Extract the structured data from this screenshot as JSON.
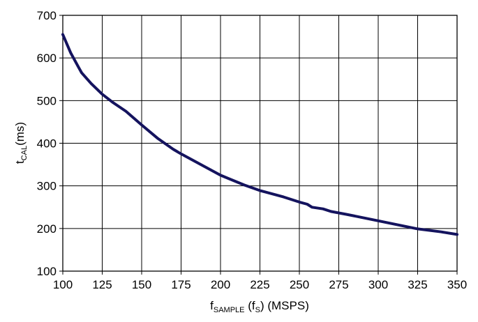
{
  "chart_data": {
    "type": "line",
    "title": "",
    "xlabel": {
      "main": "f",
      "sub1": "SAMPLE",
      "mid1": " (f",
      "sub2": "S",
      "mid2": ") (MSPS)"
    },
    "ylabel": {
      "main": "t",
      "sub": "CAL",
      "unit": "(ms)"
    },
    "xlim": [
      100,
      350
    ],
    "ylim": [
      100,
      700
    ],
    "xticks": [
      "100",
      "125",
      "150",
      "175",
      "200",
      "225",
      "250",
      "275",
      "300",
      "325",
      "350"
    ],
    "yticks": [
      "100",
      "200",
      "300",
      "400",
      "500",
      "600",
      "700"
    ],
    "grid": true,
    "series": [
      {
        "color": "#14135e",
        "x": [
          100,
          105,
          110,
          112,
          118,
          125,
          132,
          140,
          150,
          160,
          170,
          175,
          185,
          200,
          215,
          225,
          240,
          250,
          255,
          258,
          265,
          270,
          280,
          300,
          325,
          340,
          350
        ],
        "y": [
          655,
          612,
          578,
          565,
          540,
          515,
          495,
          475,
          443,
          412,
          386,
          375,
          355,
          325,
          302,
          289,
          274,
          262,
          257,
          250,
          246,
          240,
          233,
          218,
          199,
          192,
          186
        ]
      }
    ]
  }
}
